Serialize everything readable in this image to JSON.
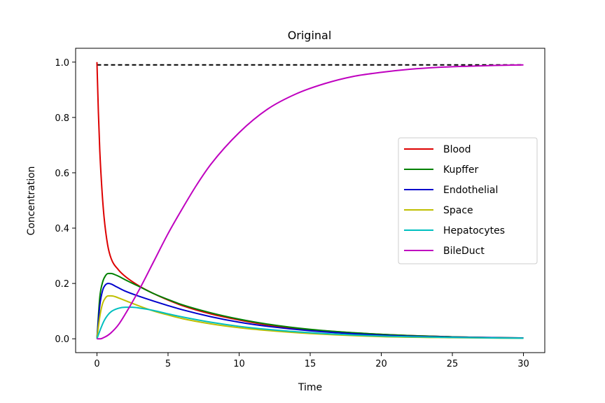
{
  "chart_data": {
    "type": "line",
    "title": "Original",
    "xlabel": "Time",
    "ylabel": "Concentration",
    "xlim": [
      -1.5,
      31.5
    ],
    "ylim": [
      -0.05,
      1.05
    ],
    "xticks": [
      0,
      5,
      10,
      15,
      20,
      25,
      30
    ],
    "xtick_labels": [
      "0",
      "5",
      "10",
      "15",
      "20",
      "25",
      "30"
    ],
    "yticks": [
      0.0,
      0.2,
      0.4,
      0.6,
      0.8,
      1.0
    ],
    "ytick_labels": [
      "0.0",
      "0.2",
      "0.4",
      "0.6",
      "0.8",
      "1.0"
    ],
    "grid": false,
    "legend_position": "center-right",
    "reference_line": {
      "y": 0.99,
      "x_range": [
        0,
        30
      ],
      "style": "dashed",
      "color": "#000000"
    },
    "series": [
      {
        "name": "Blood",
        "color": "#dd0000",
        "x": [
          0,
          0.1,
          0.2,
          0.35,
          0.5,
          0.75,
          1,
          1.5,
          2,
          3,
          4,
          5,
          6,
          8,
          10,
          12,
          15,
          20,
          25,
          30
        ],
        "y": [
          1.0,
          0.82,
          0.68,
          0.54,
          0.44,
          0.34,
          0.29,
          0.25,
          0.225,
          0.19,
          0.163,
          0.14,
          0.12,
          0.09,
          0.068,
          0.05,
          0.033,
          0.016,
          0.007,
          0.003
        ]
      },
      {
        "name": "Kupffer",
        "color": "#008000",
        "x": [
          0,
          0.2,
          0.4,
          0.6,
          0.8,
          1,
          1.3,
          1.6,
          2,
          3,
          4,
          5,
          6,
          8,
          10,
          12,
          15,
          20,
          25,
          30
        ],
        "y": [
          0,
          0.15,
          0.205,
          0.228,
          0.236,
          0.236,
          0.231,
          0.224,
          0.213,
          0.188,
          0.163,
          0.142,
          0.123,
          0.094,
          0.071,
          0.053,
          0.034,
          0.016,
          0.007,
          0.003
        ]
      },
      {
        "name": "Endothelial",
        "color": "#0000cc",
        "x": [
          0,
          0.2,
          0.4,
          0.6,
          0.8,
          1,
          1.3,
          1.6,
          2,
          3,
          4,
          5,
          6,
          8,
          10,
          12,
          15,
          20,
          25,
          30
        ],
        "y": [
          0,
          0.12,
          0.175,
          0.195,
          0.2,
          0.198,
          0.19,
          0.182,
          0.172,
          0.153,
          0.136,
          0.12,
          0.105,
          0.08,
          0.06,
          0.045,
          0.029,
          0.013,
          0.006,
          0.003
        ]
      },
      {
        "name": "Space",
        "color": "#bfbf00",
        "x": [
          0,
          0.2,
          0.4,
          0.6,
          0.8,
          1,
          1.3,
          1.6,
          2,
          3,
          4,
          5,
          6,
          8,
          10,
          12,
          15,
          20,
          25,
          30
        ],
        "y": [
          0,
          0.08,
          0.128,
          0.148,
          0.155,
          0.155,
          0.152,
          0.146,
          0.138,
          0.118,
          0.1,
          0.086,
          0.073,
          0.054,
          0.04,
          0.03,
          0.019,
          0.008,
          0.004,
          0.002
        ]
      },
      {
        "name": "Hepatocytes",
        "color": "#00bfbf",
        "x": [
          0,
          0.25,
          0.5,
          0.75,
          1,
          1.5,
          2,
          2.5,
          3,
          3.5,
          4,
          5,
          6,
          8,
          10,
          12,
          15,
          20,
          25,
          30
        ],
        "y": [
          0,
          0.035,
          0.065,
          0.085,
          0.098,
          0.11,
          0.114,
          0.114,
          0.111,
          0.107,
          0.102,
          0.09,
          0.079,
          0.06,
          0.045,
          0.034,
          0.022,
          0.01,
          0.005,
          0.002
        ]
      },
      {
        "name": "BileDuct",
        "color": "#bf00bf",
        "x": [
          0,
          0.25,
          0.5,
          0.75,
          1,
          1.5,
          2,
          3,
          4,
          5,
          6,
          7,
          8,
          10,
          12,
          14,
          16,
          18,
          20,
          22,
          24,
          26,
          28,
          30
        ],
        "y": [
          0,
          0.0,
          0.005,
          0.012,
          0.022,
          0.05,
          0.09,
          0.18,
          0.28,
          0.38,
          0.47,
          0.555,
          0.63,
          0.745,
          0.83,
          0.885,
          0.922,
          0.948,
          0.963,
          0.974,
          0.981,
          0.985,
          0.988,
          0.99
        ]
      }
    ]
  }
}
